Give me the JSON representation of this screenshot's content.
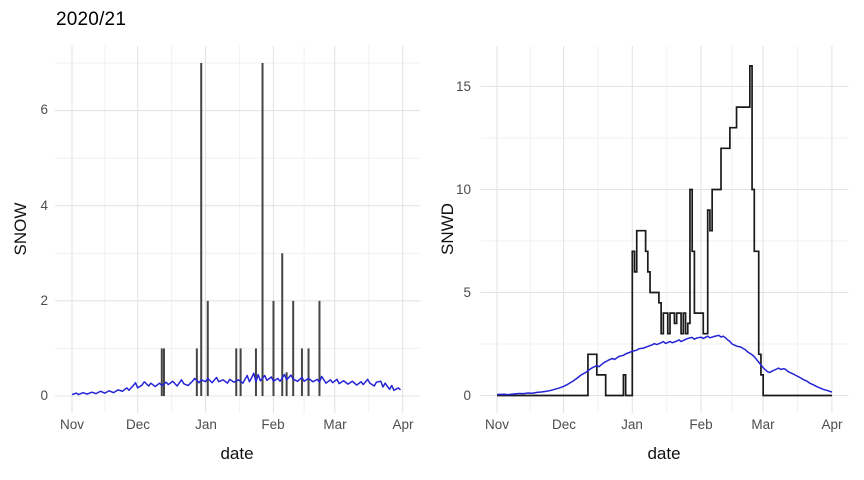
{
  "figure": {
    "title": "2020/21"
  },
  "colors": {
    "bar": "#454545",
    "step_line": "#1a1a1a",
    "blue_line": "#2424d6",
    "grid_major": "#e4e4e4",
    "grid_minor": "#f1f1f1",
    "tick_text": "#4d4d4d",
    "title_text": "#000000",
    "background": "#ffffff"
  },
  "chart_data": [
    {
      "id": "snow-panel",
      "type": "bar",
      "title": "2020/21",
      "xlabel": "date",
      "ylabel": "SNOW",
      "legend": "none",
      "grid": true,
      "x_tick_labels": [
        "Nov",
        "Dec",
        "Jan",
        "Feb",
        "Mar",
        "Apr"
      ],
      "x_tick_days": [
        0,
        30,
        61,
        92,
        120,
        151
      ],
      "x_minor_days": [
        15,
        45.5,
        76.5,
        106,
        135.5
      ],
      "y_ticks": [
        0,
        2,
        4,
        6
      ],
      "y_minor": [
        1,
        3,
        5,
        7
      ],
      "ylim": [
        -0.35,
        7.35
      ],
      "x_axis_note": "days from Nov 1 of season 2020/21",
      "bars_day_value": [
        [
          41,
          1
        ],
        [
          42,
          1
        ],
        [
          57,
          1
        ],
        [
          59,
          7
        ],
        [
          62,
          2
        ],
        [
          75,
          1
        ],
        [
          77,
          1
        ],
        [
          84,
          1
        ],
        [
          87,
          7
        ],
        [
          92,
          2
        ],
        [
          96,
          3
        ],
        [
          98,
          0.5
        ],
        [
          101,
          2
        ],
        [
          105,
          1
        ],
        [
          108,
          1
        ],
        [
          113,
          2
        ]
      ],
      "blue_line_day_value": [
        [
          0,
          0.03
        ],
        [
          2,
          0.06
        ],
        [
          3,
          0.03
        ],
        [
          5,
          0.07
        ],
        [
          7,
          0.04
        ],
        [
          9,
          0.08
        ],
        [
          11,
          0.05
        ],
        [
          13,
          0.1
        ],
        [
          15,
          0.06
        ],
        [
          17,
          0.11
        ],
        [
          19,
          0.07
        ],
        [
          21,
          0.13
        ],
        [
          23,
          0.1
        ],
        [
          25,
          0.17
        ],
        [
          26,
          0.12
        ],
        [
          28,
          0.22
        ],
        [
          29,
          0.28
        ],
        [
          30,
          0.17
        ],
        [
          32,
          0.23
        ],
        [
          33,
          0.3
        ],
        [
          35,
          0.21
        ],
        [
          36,
          0.27
        ],
        [
          38,
          0.2
        ],
        [
          40,
          0.27
        ],
        [
          41,
          0.22
        ],
        [
          43,
          0.29
        ],
        [
          44,
          0.24
        ],
        [
          46,
          0.31
        ],
        [
          48,
          0.21
        ],
        [
          50,
          0.34
        ],
        [
          51,
          0.26
        ],
        [
          53,
          0.22
        ],
        [
          55,
          0.31
        ],
        [
          56,
          0.37
        ],
        [
          58,
          0.28
        ],
        [
          59,
          0.34
        ],
        [
          61,
          0.3
        ],
        [
          62,
          0.37
        ],
        [
          64,
          0.28
        ],
        [
          66,
          0.39
        ],
        [
          67,
          0.3
        ],
        [
          69,
          0.34
        ],
        [
          71,
          0.27
        ],
        [
          72,
          0.35
        ],
        [
          74,
          0.29
        ],
        [
          76,
          0.34
        ],
        [
          78,
          0.27
        ],
        [
          80,
          0.43
        ],
        [
          81,
          0.3
        ],
        [
          82,
          0.38
        ],
        [
          83,
          0.48
        ],
        [
          84,
          0.3
        ],
        [
          85,
          0.45
        ],
        [
          86,
          0.32
        ],
        [
          88,
          0.43
        ],
        [
          89,
          0.33
        ],
        [
          91,
          0.4
        ],
        [
          92,
          0.31
        ],
        [
          94,
          0.37
        ],
        [
          95,
          0.31
        ],
        [
          97,
          0.45
        ],
        [
          98,
          0.34
        ],
        [
          100,
          0.44
        ],
        [
          101,
          0.35
        ],
        [
          103,
          0.31
        ],
        [
          105,
          0.39
        ],
        [
          106,
          0.31
        ],
        [
          108,
          0.37
        ],
        [
          110,
          0.3
        ],
        [
          112,
          0.35
        ],
        [
          113,
          0.29
        ],
        [
          114,
          0.41
        ],
        [
          116,
          0.27
        ],
        [
          118,
          0.34
        ],
        [
          119,
          0.28
        ],
        [
          121,
          0.35
        ],
        [
          122,
          0.26
        ],
        [
          124,
          0.32
        ],
        [
          126,
          0.25
        ],
        [
          128,
          0.31
        ],
        [
          130,
          0.23
        ],
        [
          132,
          0.3
        ],
        [
          133,
          0.24
        ],
        [
          135,
          0.35
        ],
        [
          136,
          0.27
        ],
        [
          138,
          0.21
        ],
        [
          139,
          0.29
        ],
        [
          141,
          0.31
        ],
        [
          142,
          0.19
        ],
        [
          143,
          0.27
        ],
        [
          145,
          0.14
        ],
        [
          146,
          0.22
        ],
        [
          147,
          0.12
        ],
        [
          149,
          0.17
        ],
        [
          150,
          0.13
        ]
      ]
    },
    {
      "id": "snwd-panel",
      "type": "line",
      "title": "",
      "xlabel": "date",
      "ylabel": "SNWD",
      "legend": "none",
      "grid": true,
      "x_tick_labels": [
        "Nov",
        "Dec",
        "Jan",
        "Feb",
        "Mar",
        "Apr"
      ],
      "x_tick_days": [
        0,
        30,
        61,
        92,
        120,
        151
      ],
      "x_minor_days": [
        15,
        45.5,
        76.5,
        106,
        135.5
      ],
      "y_ticks": [
        0,
        5,
        10,
        15
      ],
      "y_minor": [
        2.5,
        7.5,
        12.5
      ],
      "ylim": [
        -0.8,
        16.8
      ],
      "x_axis_note": "days from Nov 1 of season 2020/21",
      "step_day_value": [
        [
          0,
          0
        ],
        [
          41,
          2
        ],
        [
          45,
          1
        ],
        [
          49,
          0
        ],
        [
          57,
          1
        ],
        [
          58,
          0
        ],
        [
          61,
          7
        ],
        [
          62,
          6
        ],
        [
          63,
          8
        ],
        [
          67,
          7
        ],
        [
          68,
          6
        ],
        [
          69,
          5
        ],
        [
          73,
          4.5
        ],
        [
          74,
          3
        ],
        [
          75,
          4
        ],
        [
          77,
          3
        ],
        [
          78,
          4
        ],
        [
          80,
          3.5
        ],
        [
          81,
          4
        ],
        [
          83,
          3
        ],
        [
          84,
          4
        ],
        [
          85,
          3
        ],
        [
          86,
          3.5
        ],
        [
          87,
          10
        ],
        [
          88,
          7
        ],
        [
          89,
          4
        ],
        [
          93,
          3
        ],
        [
          95,
          9
        ],
        [
          96,
          8
        ],
        [
          97,
          10
        ],
        [
          101,
          12
        ],
        [
          105,
          13
        ],
        [
          108,
          14
        ],
        [
          114,
          16
        ],
        [
          115,
          10
        ],
        [
          116,
          7
        ],
        [
          118,
          2
        ],
        [
          119,
          1
        ],
        [
          120,
          0
        ],
        [
          151,
          0
        ]
      ],
      "blue_line_day_value": [
        [
          0,
          0.05
        ],
        [
          3,
          0.06
        ],
        [
          5,
          0.04
        ],
        [
          8,
          0.08
        ],
        [
          10,
          0.1
        ],
        [
          12,
          0.09
        ],
        [
          14,
          0.12
        ],
        [
          16,
          0.11
        ],
        [
          18,
          0.15
        ],
        [
          20,
          0.17
        ],
        [
          22,
          0.2
        ],
        [
          24,
          0.24
        ],
        [
          26,
          0.3
        ],
        [
          28,
          0.36
        ],
        [
          30,
          0.44
        ],
        [
          32,
          0.55
        ],
        [
          34,
          0.68
        ],
        [
          36,
          0.83
        ],
        [
          38,
          1.0
        ],
        [
          40,
          1.12
        ],
        [
          42,
          1.28
        ],
        [
          43,
          1.35
        ],
        [
          45,
          1.45
        ],
        [
          46,
          1.4
        ],
        [
          48,
          1.58
        ],
        [
          50,
          1.7
        ],
        [
          52,
          1.8
        ],
        [
          53,
          1.75
        ],
        [
          55,
          1.9
        ],
        [
          57,
          1.95
        ],
        [
          58,
          2.02
        ],
        [
          60,
          2.1
        ],
        [
          61,
          2.15
        ],
        [
          63,
          2.2
        ],
        [
          64,
          2.27
        ],
        [
          66,
          2.3
        ],
        [
          68,
          2.38
        ],
        [
          70,
          2.46
        ],
        [
          71,
          2.52
        ],
        [
          72,
          2.47
        ],
        [
          74,
          2.56
        ],
        [
          75,
          2.62
        ],
        [
          76,
          2.53
        ],
        [
          78,
          2.62
        ],
        [
          79,
          2.56
        ],
        [
          81,
          2.64
        ],
        [
          82,
          2.7
        ],
        [
          83,
          2.62
        ],
        [
          85,
          2.72
        ],
        [
          86,
          2.77
        ],
        [
          88,
          2.82
        ],
        [
          89,
          2.73
        ],
        [
          90,
          2.79
        ],
        [
          92,
          2.83
        ],
        [
          93,
          2.77
        ],
        [
          95,
          2.88
        ],
        [
          96,
          2.8
        ],
        [
          98,
          2.87
        ],
        [
          100,
          2.92
        ],
        [
          101,
          2.84
        ],
        [
          102,
          2.88
        ],
        [
          103,
          2.8
        ],
        [
          104,
          2.7
        ],
        [
          105,
          2.62
        ],
        [
          106,
          2.5
        ],
        [
          107,
          2.45
        ],
        [
          108,
          2.4
        ],
        [
          110,
          2.35
        ],
        [
          111,
          2.28
        ],
        [
          112,
          2.22
        ],
        [
          113,
          2.12
        ],
        [
          115,
          1.98
        ],
        [
          116,
          1.88
        ],
        [
          117,
          1.75
        ],
        [
          118,
          1.62
        ],
        [
          119,
          1.48
        ],
        [
          120,
          1.35
        ],
        [
          121,
          1.25
        ],
        [
          122,
          1.15
        ],
        [
          123,
          1.12
        ],
        [
          124,
          1.18
        ],
        [
          126,
          1.28
        ],
        [
          127,
          1.33
        ],
        [
          128,
          1.26
        ],
        [
          129,
          1.3
        ],
        [
          130,
          1.28
        ],
        [
          131,
          1.18
        ],
        [
          132,
          1.12
        ],
        [
          134,
          1.02
        ],
        [
          135,
          0.96
        ],
        [
          137,
          0.85
        ],
        [
          138,
          0.78
        ],
        [
          140,
          0.68
        ],
        [
          141,
          0.6
        ],
        [
          143,
          0.5
        ],
        [
          144,
          0.44
        ],
        [
          146,
          0.35
        ],
        [
          147,
          0.3
        ],
        [
          149,
          0.24
        ],
        [
          150,
          0.2
        ],
        [
          151,
          0.17
        ]
      ]
    }
  ]
}
